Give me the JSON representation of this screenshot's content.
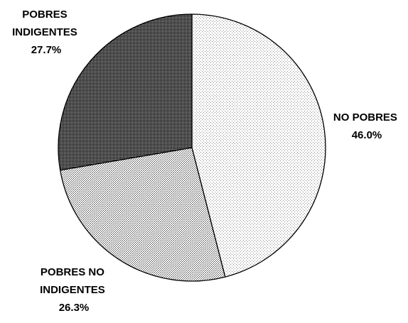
{
  "chart_data": {
    "type": "pie",
    "start_angle_deg": 0,
    "direction": "clockwise",
    "slices": [
      {
        "label_lines": [
          "NO POBRES"
        ],
        "value": 46.0,
        "value_label": "46.0%",
        "pattern": "fine-dots"
      },
      {
        "label_lines": [
          "POBRES NO",
          "INDIGENTES"
        ],
        "value": 26.3,
        "value_label": "26.3%",
        "pattern": "medium-dots"
      },
      {
        "label_lines": [
          "POBRES",
          "INDIGENTES"
        ],
        "value": 27.7,
        "value_label": "27.7%",
        "pattern": "dense-dots"
      }
    ]
  }
}
